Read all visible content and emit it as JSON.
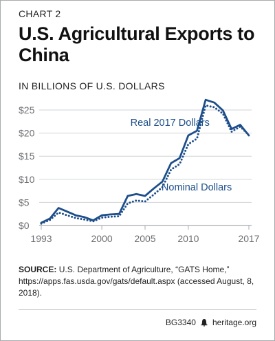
{
  "header": {
    "chart_number": "CHART 2",
    "title": "U.S. Agricultural Exports to China",
    "units": "IN BILLIONS OF U.S. DOLLARS"
  },
  "source": {
    "label": "SOURCE:",
    "text": "U.S. Department of Agriculture, “GATS Home,” https://apps.fas.usda.gov/gats/default.aspx (accessed August, 8, 2018)."
  },
  "footer": {
    "code": "BG3340",
    "site": "heritage.org"
  },
  "colors": {
    "series": "#1d4e8a",
    "grid": "#d1d3d4",
    "axis_text": "#6d6e71"
  },
  "chart_data": {
    "type": "line",
    "title": "U.S. Agricultural Exports to China",
    "ylabel": "IN BILLIONS OF U.S. DOLLARS",
    "xlabel": "",
    "xlim": [
      1993,
      2017
    ],
    "ylim": [
      0,
      25
    ],
    "x_ticks": [
      1993,
      2000,
      2005,
      2010,
      2017
    ],
    "x_tick_labels": [
      "1993",
      "2000",
      "2005",
      "2010",
      "2017"
    ],
    "y_ticks": [
      0,
      5,
      10,
      15,
      20,
      25
    ],
    "y_tick_labels": [
      "$0",
      "$5",
      "$10",
      "$15",
      "$20",
      "$25"
    ],
    "grid": "horizontal",
    "legend": "labels next to lines",
    "x": [
      1993,
      1994,
      1995,
      1996,
      1997,
      1998,
      1999,
      2000,
      2001,
      2002,
      2003,
      2004,
      2005,
      2006,
      2007,
      2008,
      2009,
      2010,
      2011,
      2012,
      2013,
      2014,
      2015,
      2016,
      2017
    ],
    "series": [
      {
        "name": "Real 2017 Dollars",
        "style": "solid",
        "values": [
          0.6,
          1.5,
          3.8,
          3.0,
          2.2,
          1.8,
          1.1,
          2.2,
          2.4,
          2.5,
          6.4,
          6.8,
          6.4,
          8.0,
          9.5,
          13.5,
          14.6,
          19.5,
          20.5,
          27.2,
          26.6,
          24.9,
          20.9,
          21.8,
          19.5
        ]
      },
      {
        "name": "Nominal Dollars",
        "style": "dotted",
        "values": [
          0.4,
          1.2,
          2.8,
          2.2,
          1.6,
          1.3,
          0.9,
          1.7,
          1.9,
          2.0,
          4.8,
          5.4,
          5.2,
          6.7,
          8.3,
          12.1,
          13.3,
          17.6,
          18.8,
          26.0,
          25.6,
          24.2,
          20.3,
          21.4,
          19.6
        ]
      }
    ],
    "series_labels": [
      "Real 2017 Dollars",
      "Nominal Dollars"
    ]
  }
}
